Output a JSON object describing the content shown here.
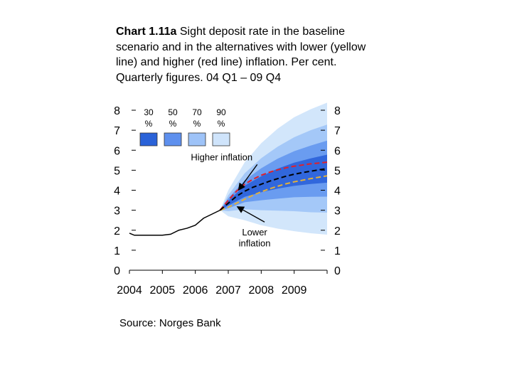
{
  "title": {
    "bold": "Chart 1.11a",
    "rest": " Sight deposit rate in the baseline scenario and in the alternatives with lower (yellow line) and higher (red line) inflation. Per cent. Quarterly figures. 04 Q1 – 09 Q4"
  },
  "source": "Source: Norges Bank",
  "chart_data": {
    "type": "line",
    "x_ticks": [
      "2004",
      "2005",
      "2006",
      "2007",
      "2008",
      "2009"
    ],
    "y_ticks": [
      "0",
      "1",
      "2",
      "3",
      "4",
      "5",
      "6",
      "7",
      "8"
    ],
    "ylim": [
      0,
      8
    ],
    "xlim": [
      2004,
      2010
    ],
    "legend": [
      {
        "label": "30",
        "unit": "%",
        "color": "#2a62d8"
      },
      {
        "label": "50",
        "unit": "%",
        "color": "#5e90ee"
      },
      {
        "label": "70",
        "unit": "%",
        "color": "#9ec3f8"
      },
      {
        "label": "90",
        "unit": "%",
        "color": "#cfe4fb"
      }
    ],
    "fan_colors": [
      "#d2e6fb",
      "#a4c8f8",
      "#6a9cf0",
      "#3167dc"
    ],
    "annotations": [
      {
        "text": "Higher inflation",
        "x": 2006.8,
        "y": 5.5,
        "arrow_to": [
          2007.33,
          4.05
        ]
      },
      {
        "text": "Lower",
        "x": 2007.8,
        "y": 1.75
      },
      {
        "text": "inflation",
        "x": 2007.8,
        "y": 1.2,
        "arrow_to": [
          2007.3,
          3.15
        ]
      }
    ],
    "series": [
      {
        "name": "History",
        "color": "#000000",
        "style": "solid",
        "x": [
          2004.0,
          2004.15,
          2004.25,
          2004.5,
          2004.75,
          2005.0,
          2005.25,
          2005.5,
          2005.75,
          2006.0,
          2006.25,
          2006.5,
          2006.75
        ],
        "y": [
          1.85,
          1.75,
          1.75,
          1.75,
          1.75,
          1.75,
          1.8,
          2.0,
          2.1,
          2.25,
          2.6,
          2.8,
          3.0
        ]
      },
      {
        "name": "Baseline",
        "color": "#000000",
        "style": "dashed",
        "x": [
          2006.75,
          2007.0,
          2007.25,
          2007.5,
          2007.75,
          2008.0,
          2008.25,
          2008.5,
          2008.75,
          2009.0,
          2009.25,
          2009.5,
          2009.75,
          2010.0
        ],
        "y": [
          3.0,
          3.35,
          3.7,
          3.95,
          4.15,
          4.3,
          4.45,
          4.58,
          4.7,
          4.8,
          4.88,
          4.95,
          5.02,
          5.08
        ]
      },
      {
        "name": "Higher inflation",
        "color": "#e0202a",
        "style": "dashed",
        "x": [
          2006.75,
          2007.0,
          2007.25,
          2007.5,
          2007.75,
          2008.0,
          2008.25,
          2008.5,
          2008.75,
          2009.0,
          2009.25,
          2009.5,
          2009.75,
          2010.0
        ],
        "y": [
          3.0,
          3.5,
          3.95,
          4.3,
          4.55,
          4.75,
          4.9,
          5.02,
          5.12,
          5.2,
          5.26,
          5.32,
          5.36,
          5.4
        ]
      },
      {
        "name": "Lower inflation",
        "color": "#e3b03a",
        "style": "dashed",
        "x": [
          2006.75,
          2007.0,
          2007.25,
          2007.5,
          2007.75,
          2008.0,
          2008.25,
          2008.5,
          2008.75,
          2009.0,
          2009.25,
          2009.5,
          2009.75,
          2010.0
        ],
        "y": [
          3.0,
          3.15,
          3.35,
          3.55,
          3.75,
          3.92,
          4.07,
          4.2,
          4.32,
          4.42,
          4.5,
          4.58,
          4.65,
          4.72
        ]
      }
    ],
    "fan": {
      "x": [
        2006.75,
        2007.0,
        2007.5,
        2008.0,
        2008.5,
        2009.0,
        2009.5,
        2010.0
      ],
      "center": [
        3.0,
        3.35,
        3.95,
        4.3,
        4.58,
        4.8,
        4.95,
        5.08
      ],
      "half_widths": {
        "30": [
          0,
          0.12,
          0.28,
          0.4,
          0.5,
          0.58,
          0.64,
          0.7
        ],
        "50": [
          0,
          0.25,
          0.55,
          0.8,
          1.0,
          1.15,
          1.28,
          1.4
        ],
        "70": [
          0,
          0.4,
          0.9,
          1.3,
          1.6,
          1.85,
          2.05,
          2.2
        ],
        "90": [
          0,
          0.65,
          1.45,
          2.05,
          2.5,
          2.85,
          3.1,
          3.3
        ]
      }
    }
  }
}
